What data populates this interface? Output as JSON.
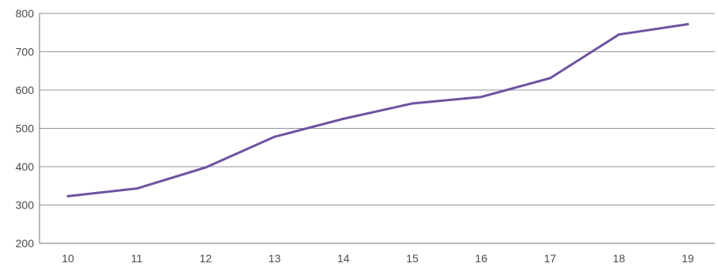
{
  "chart_data": {
    "type": "line",
    "title": "",
    "xlabel": "",
    "ylabel": "",
    "categories": [
      "10",
      "11",
      "12",
      "13",
      "14",
      "15",
      "16",
      "17",
      "18",
      "19"
    ],
    "series": [
      {
        "values": [
          323,
          343,
          398,
          478,
          525,
          565,
          582,
          631,
          745,
          772
        ],
        "color": "#6e53a0"
      }
    ],
    "ylim": [
      200,
      800
    ],
    "yticks": [
      "200",
      "300",
      "400",
      "500",
      "600",
      "700",
      "800"
    ],
    "grid": true,
    "legend": "none"
  }
}
